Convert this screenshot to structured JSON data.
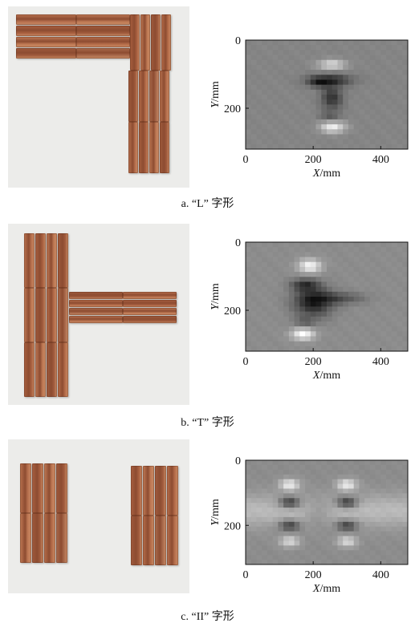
{
  "panels": [
    {
      "caption": "a. “L” 字形",
      "chart_data": {
        "type": "heatmap",
        "xlabel": "X/mm",
        "ylabel": "Y/mm",
        "xlim": [
          0,
          480
        ],
        "ylim": [
          0,
          320
        ],
        "xticks": [
          0,
          200,
          400
        ],
        "yticks": [
          0,
          200
        ],
        "grid": false,
        "colormap": "gray",
        "background": 0.52,
        "blobs": [
          {
            "x": 255,
            "y": 72,
            "sx": 28,
            "sy": 10,
            "value": 0.35
          },
          {
            "x": 250,
            "y": 118,
            "sx": 45,
            "sy": 12,
            "value": -0.35
          },
          {
            "x": 215,
            "y": 125,
            "sx": 22,
            "sy": 10,
            "value": -0.2
          },
          {
            "x": 255,
            "y": 170,
            "sx": 22,
            "sy": 25,
            "value": -0.32
          },
          {
            "x": 258,
            "y": 255,
            "sx": 26,
            "sy": 12,
            "value": 0.42
          },
          {
            "x": 250,
            "y": 225,
            "sx": 22,
            "sy": 10,
            "value": -0.15
          }
        ]
      }
    },
    {
      "caption": "b. “T” 字形",
      "chart_data": {
        "type": "heatmap",
        "xlabel": "X/mm",
        "ylabel": "Y/mm",
        "xlim": [
          0,
          480
        ],
        "ylim": [
          0,
          320
        ],
        "xticks": [
          0,
          200,
          400
        ],
        "yticks": [
          0,
          200
        ],
        "grid": false,
        "colormap": "gray",
        "background": 0.55,
        "blobs": [
          {
            "x": 190,
            "y": 70,
            "sx": 24,
            "sy": 14,
            "value": 0.42
          },
          {
            "x": 175,
            "y": 125,
            "sx": 28,
            "sy": 12,
            "value": -0.32
          },
          {
            "x": 200,
            "y": 175,
            "sx": 40,
            "sy": 30,
            "value": -0.45
          },
          {
            "x": 280,
            "y": 165,
            "sx": 50,
            "sy": 12,
            "value": -0.22
          },
          {
            "x": 170,
            "y": 270,
            "sx": 24,
            "sy": 12,
            "value": 0.45
          },
          {
            "x": 175,
            "y": 235,
            "sx": 22,
            "sy": 10,
            "value": -0.15
          }
        ]
      }
    },
    {
      "caption": "c. “II” 字形",
      "chart_data": {
        "type": "heatmap",
        "xlabel": "X/mm",
        "ylabel": "Y/mm",
        "xlim": [
          0,
          480
        ],
        "ylim": [
          0,
          320
        ],
        "xticks": [
          0,
          200,
          400
        ],
        "yticks": [
          0,
          200
        ],
        "grid": false,
        "colormap": "gray",
        "background": 0.55,
        "band": {
          "y": 155,
          "sy": 35,
          "value": 0.18
        },
        "blobs": [
          {
            "x": 130,
            "y": 75,
            "sx": 20,
            "sy": 12,
            "value": 0.38
          },
          {
            "x": 130,
            "y": 130,
            "sx": 22,
            "sy": 12,
            "value": -0.42
          },
          {
            "x": 130,
            "y": 200,
            "sx": 22,
            "sy": 12,
            "value": -0.35
          },
          {
            "x": 130,
            "y": 250,
            "sx": 20,
            "sy": 12,
            "value": 0.3
          },
          {
            "x": 300,
            "y": 75,
            "sx": 20,
            "sy": 12,
            "value": 0.38
          },
          {
            "x": 300,
            "y": 130,
            "sx": 22,
            "sy": 12,
            "value": -0.42
          },
          {
            "x": 300,
            "y": 200,
            "sx": 22,
            "sy": 12,
            "value": -0.35
          },
          {
            "x": 300,
            "y": 250,
            "sx": 20,
            "sy": 12,
            "value": 0.3
          },
          {
            "x": 215,
            "y": 160,
            "sx": 30,
            "sy": 30,
            "value": -0.12
          }
        ]
      }
    }
  ]
}
